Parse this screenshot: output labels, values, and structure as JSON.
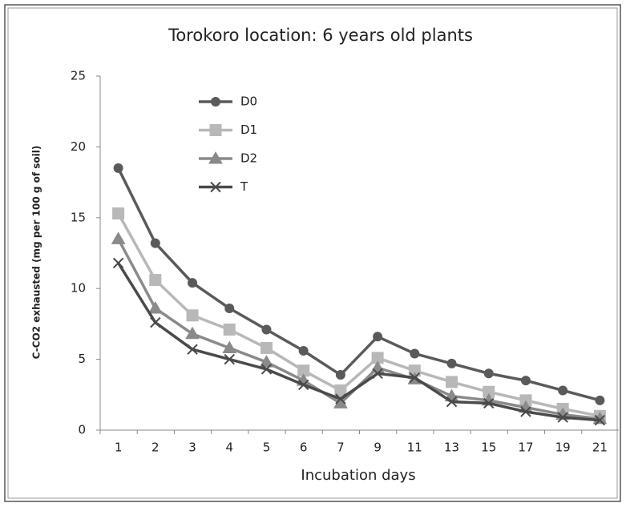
{
  "chart_data": {
    "type": "line",
    "title": "Torokoro location: 6 years old plants",
    "x_label": "Incubation days",
    "y_label": "C-CO2 exhausted (mg per 100 g of soil)",
    "categories": [
      "1",
      "2",
      "3",
      "4",
      "5",
      "6",
      "7",
      "9",
      "11",
      "13",
      "15",
      "17",
      "19",
      "21"
    ],
    "series": [
      {
        "name": "D0",
        "color": "#5a5a5a",
        "marker": "circle",
        "values": [
          18.5,
          13.2,
          10.4,
          8.6,
          7.1,
          5.6,
          3.9,
          6.6,
          5.4,
          4.7,
          4.0,
          3.5,
          2.8,
          2.1
        ]
      },
      {
        "name": "D1",
        "color": "#b8b8b8",
        "marker": "square",
        "values": [
          15.3,
          10.6,
          8.1,
          7.1,
          5.8,
          4.2,
          2.8,
          5.1,
          4.2,
          3.4,
          2.7,
          2.1,
          1.5,
          1.0
        ]
      },
      {
        "name": "D2",
        "color": "#8a8a8a",
        "marker": "triangle",
        "values": [
          13.5,
          8.6,
          6.8,
          5.8,
          4.8,
          3.5,
          1.9,
          4.4,
          3.6,
          2.4,
          2.1,
          1.6,
          1.1,
          0.8
        ]
      },
      {
        "name": "T",
        "color": "#4a4a4a",
        "marker": "x",
        "values": [
          11.8,
          7.6,
          5.7,
          5.0,
          4.3,
          3.2,
          2.2,
          4.0,
          3.7,
          2.0,
          1.9,
          1.3,
          0.9,
          0.7
        ]
      }
    ],
    "ylim": [
      0,
      25
    ],
    "yticks": [
      0,
      5,
      10,
      15,
      20,
      25
    ],
    "grid": false,
    "legend": "upper left"
  }
}
